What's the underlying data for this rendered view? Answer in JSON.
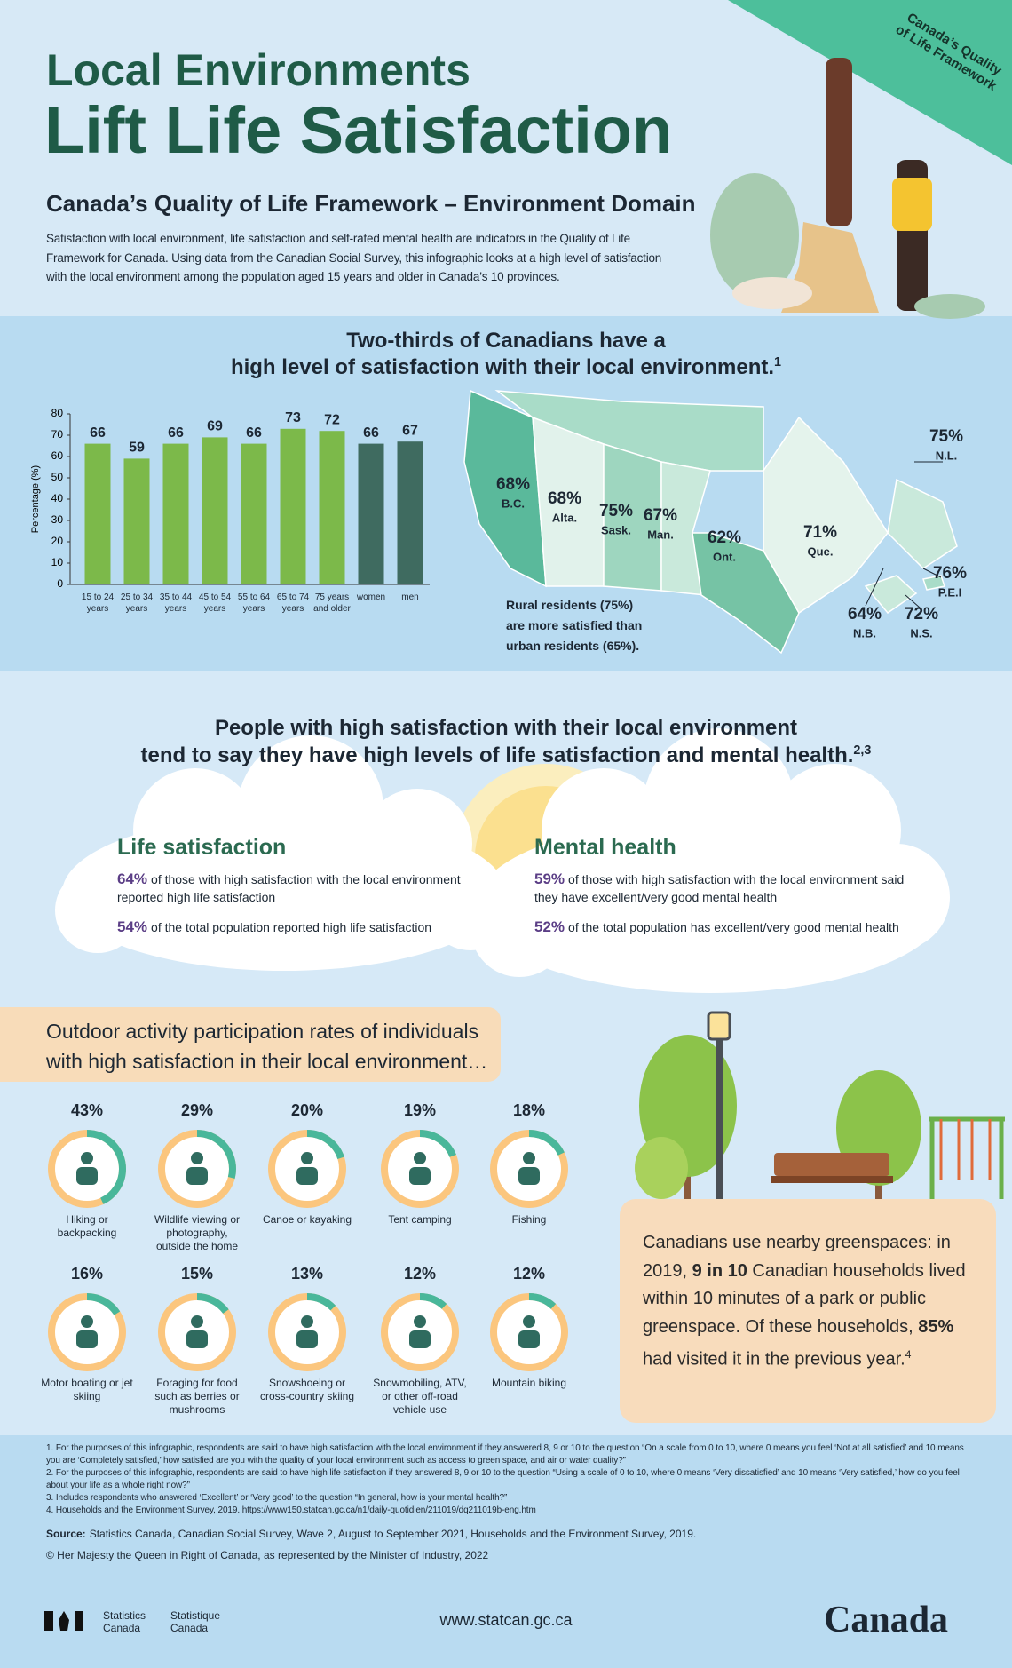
{
  "header": {
    "title": [
      "Local Environments",
      "Lift Life Satisfaction"
    ],
    "subtitle": "Canada’s Quality of Life Framework – Environment Domain",
    "intro": "Satisfaction with local environment, life satisfaction and self-rated mental health are indicators in the Quality of Life Framework for Canada. Using data from the Canadian Social Survey, this infographic looks at a high level of satisfaction with the local environment among the population aged 15 years and older in Canada’s 10 provinces.",
    "badge": [
      "Canada’s Quality",
      "of Life Framework"
    ]
  },
  "satisfaction": {
    "heading": [
      "Two-thirds of Canadians have a",
      "high level of satisfaction with their local environment."
    ],
    "note": "1"
  },
  "chart_data": {
    "type": "bar",
    "categories": [
      "15 to 24 years",
      "25 to 34 years",
      "35 to 44 years",
      "45 to 54 years",
      "55 to 64 years",
      "65 to 74 years",
      "75 years and older",
      "women",
      "men"
    ],
    "values": [
      66,
      59,
      66,
      69,
      66,
      73,
      72,
      66,
      67
    ],
    "colors": [
      "#7cb94a",
      "#7cb94a",
      "#7cb94a",
      "#7cb94a",
      "#7cb94a",
      "#7cb94a",
      "#7cb94a",
      "#3f6b60",
      "#3f6b60"
    ],
    "y_label": "Percentage (%)",
    "ylim": [
      0,
      80
    ],
    "yticks": [
      0,
      10,
      20,
      30,
      40,
      50,
      60,
      70,
      80
    ],
    "grid": false
  },
  "map": {
    "provinces": [
      {
        "value": "68%",
        "name": "B.C."
      },
      {
        "value": "68%",
        "name": "Alta."
      },
      {
        "value": "75%",
        "name": "Sask."
      },
      {
        "value": "67%",
        "name": "Man."
      },
      {
        "value": "62%",
        "name": "Ont."
      },
      {
        "value": "71%",
        "name": "Que."
      },
      {
        "value": "75%",
        "name": "N.L."
      },
      {
        "value": "76%",
        "name": "P.E.I"
      },
      {
        "value": "72%",
        "name": "N.S."
      },
      {
        "value": "64%",
        "name": "N.B."
      }
    ],
    "note": "Rural residents (75%) are more satisfied than urban residents (65%)."
  },
  "wellbeing": {
    "heading": [
      "People with high satisfaction with their local environment",
      "tend to say they have high levels of life satisfaction and mental health."
    ],
    "note": "2,3",
    "panels": [
      {
        "title": "Life satisfaction",
        "items": [
          {
            "value": "64%",
            "text": "of those with high satisfaction with the local environment reported high life satisfaction"
          },
          {
            "value": "54%",
            "text": "of the total population reported high life satisfaction"
          }
        ]
      },
      {
        "title": "Mental health",
        "items": [
          {
            "value": "59%",
            "text": "of those with high satisfaction with the local environment said they have excellent/very good mental health"
          },
          {
            "value": "52%",
            "text": "of the total population has excellent/very good mental health"
          }
        ]
      }
    ]
  },
  "activities": {
    "heading": [
      "Outdoor activity participation rates of individuals",
      "with high satisfaction in their local environment…"
    ],
    "items": [
      {
        "value": 43,
        "value_label": "43%",
        "label": "Hiking or backpacking"
      },
      {
        "value": 29,
        "value_label": "29%",
        "label": "Wildlife viewing or photography, outside the home"
      },
      {
        "value": 20,
        "value_label": "20%",
        "label": "Canoe or kayaking"
      },
      {
        "value": 19,
        "value_label": "19%",
        "label": "Tent camping"
      },
      {
        "value": 18,
        "value_label": "18%",
        "label": "Fishing"
      },
      {
        "value": 16,
        "value_label": "16%",
        "label": "Motor boating or jet skiing"
      },
      {
        "value": 15,
        "value_label": "15%",
        "label": "Foraging for food such as berries or mushrooms"
      },
      {
        "value": 13,
        "value_label": "13%",
        "label": "Snowshoeing or cross-country skiing"
      },
      {
        "value": 12,
        "value_label": "12%",
        "label": "Snowmobiling, ATV, or other off-road vehicle use"
      },
      {
        "value": 12,
        "value_label": "12%",
        "label": "Mountain biking"
      }
    ]
  },
  "greenspace": {
    "parts": [
      "Canadians use nearby greenspaces: in 2019, ",
      "9 in 10",
      " Canadian households lived within 10 minutes of a park or public greenspace. Of these households, ",
      "85%",
      " had visited it in the previous year."
    ],
    "note": "4"
  },
  "footer": {
    "footnotes": [
      "1. For the purposes of this infographic, respondents are said to have high satisfaction with the local environment if they answered 8, 9 or 10 to the question “On a scale from 0 to 10, where 0 means you feel ‘Not at all satisfied’ and 10 means you are ‘Completely satisfied,’ how satisfied are you with the quality of your local environment such as access to green space, and air or water quality?”",
      "2. For the purposes of this infographic, respondents are said to have high life satisfaction if they answered 8, 9 or 10 to the question “Using a scale of 0 to 10, where 0 means ‘Very dissatisfied’ and 10 means ‘Very satisfied,’ how do you feel about your life as a whole right now?”",
      "3. Includes respondents who answered ‘Excellent’ or ‘Very good’ to the question “In general, how is your mental health?”",
      "4. Households and the Environment Survey, 2019. https://www150.statcan.gc.ca/n1/daily-quotidien/211019/dq211019b-eng.htm"
    ],
    "source_label": "Source:",
    "source": "Statistics Canada, Canadian Social Survey, Wave 2, August to September 2021, Households and the Environment Survey, 2019.",
    "copyright": "© Her Majesty the Queen in Right of Canada, as represented by the Minister of Industry, 2022",
    "logo_en": "Statistics Canada",
    "logo_fr": "Statistique Canada",
    "url": "www.statcan.gc.ca",
    "wordmark": "Canada"
  }
}
